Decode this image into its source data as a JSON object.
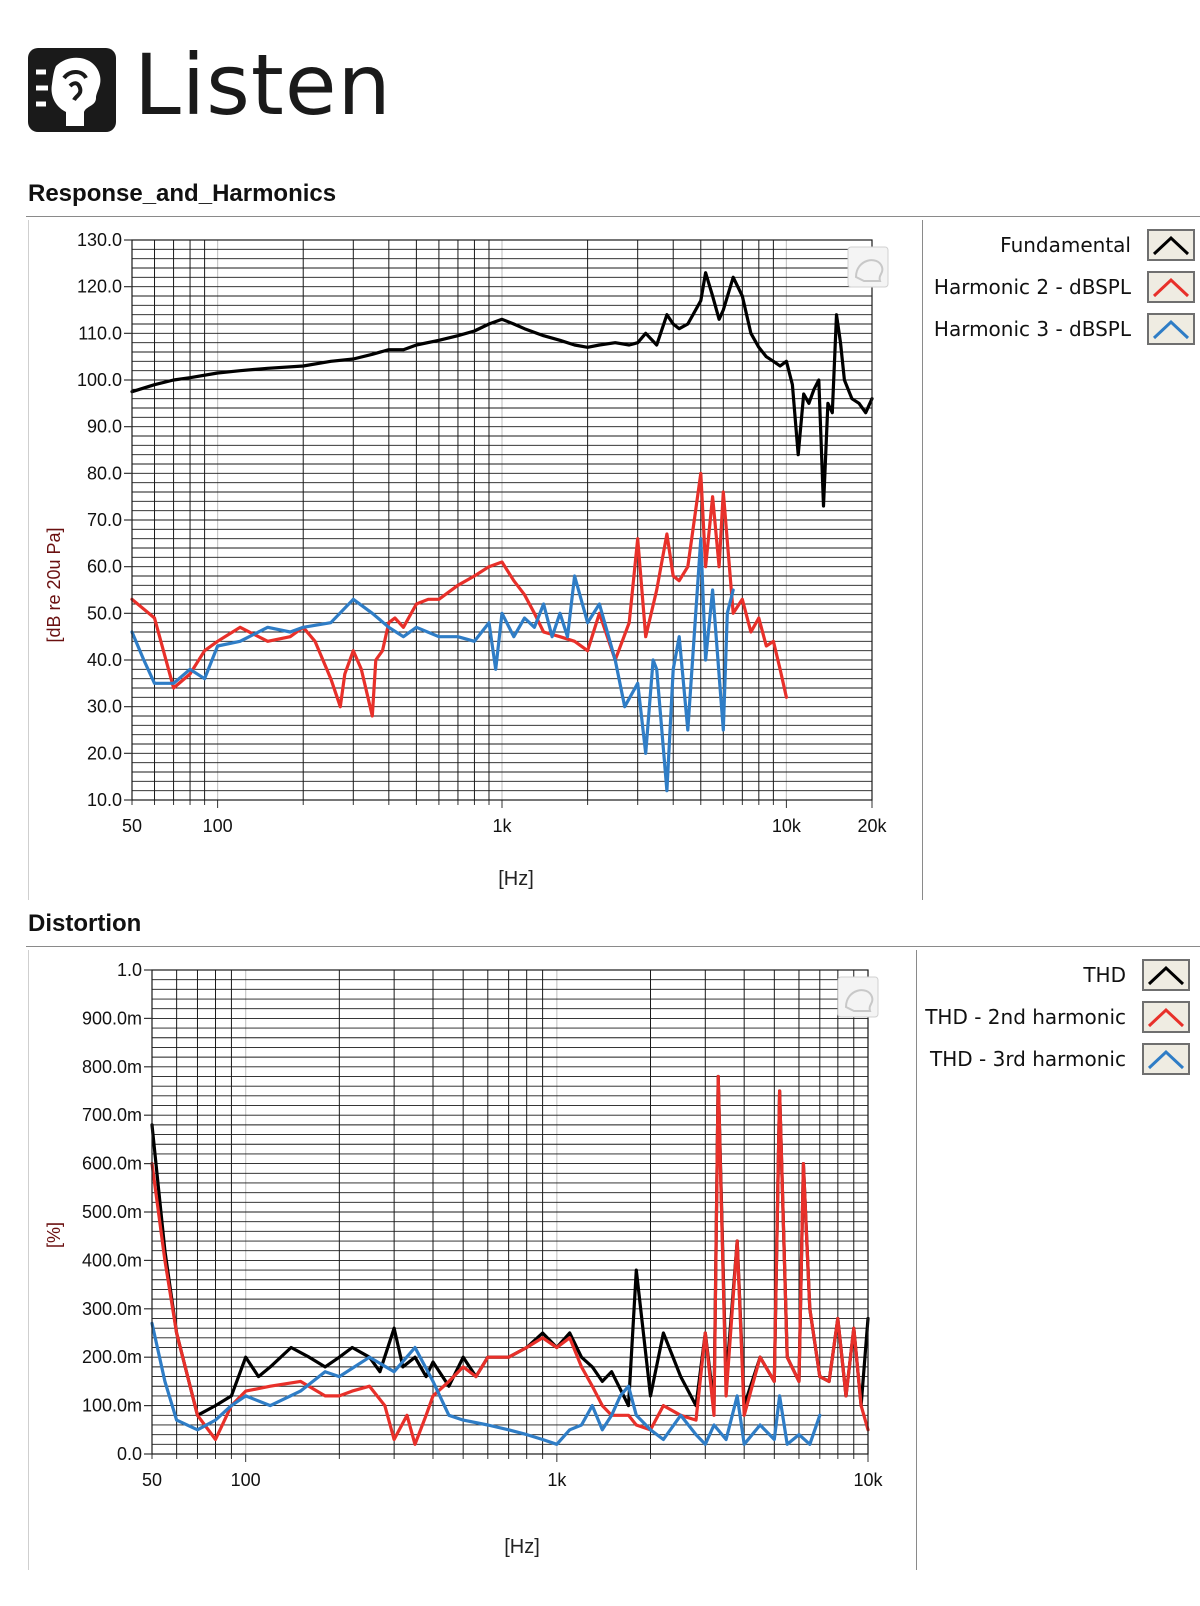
{
  "brand": {
    "name": "Listen"
  },
  "charts": {
    "response": {
      "section_title": "Response_and_Harmonics",
      "ylabel": "[dB re 20u Pa]",
      "xlabel": "[Hz]",
      "y_ticks": [
        "130.0",
        "120.0",
        "110.0",
        "100.0",
        "90.0",
        "80.0",
        "70.0",
        "60.0",
        "50.0",
        "40.0",
        "30.0",
        "20.0",
        "10.0"
      ],
      "x_ticks": [
        "50",
        "100",
        "1k",
        "10k",
        "20k"
      ],
      "legend": [
        "Fundamental",
        "Harmonic 2 - dBSPL",
        "Harmonic 3 - dBSPL"
      ]
    },
    "distortion": {
      "section_title": "Distortion",
      "ylabel": "[%]",
      "xlabel": "[Hz]",
      "y_ticks": [
        "1.0",
        "900.0m",
        "800.0m",
        "700.0m",
        "600.0m",
        "500.0m",
        "400.0m",
        "300.0m",
        "200.0m",
        "100.0m",
        "0.0"
      ],
      "x_ticks": [
        "50",
        "100",
        "1k",
        "10k"
      ],
      "legend": [
        "THD",
        "THD - 2nd harmonic",
        "THD - 3rd harmonic"
      ]
    }
  },
  "chart_data": [
    {
      "type": "line",
      "title": "Response_and_Harmonics",
      "xlabel": "[Hz]",
      "ylabel": "[dB re 20u Pa]",
      "xscale": "log",
      "xlim": [
        50,
        20000
      ],
      "ylim": [
        10,
        130
      ],
      "grid": true,
      "legend_position": "right",
      "series": [
        {
          "name": "Fundamental",
          "color": "#000000",
          "x": [
            50,
            60,
            70,
            80,
            100,
            120,
            150,
            200,
            250,
            300,
            350,
            400,
            450,
            500,
            600,
            700,
            800,
            900,
            1000,
            1100,
            1200,
            1400,
            1600,
            1800,
            2000,
            2200,
            2500,
            2800,
            3000,
            3200,
            3500,
            3800,
            4000,
            4200,
            4500,
            5000,
            5200,
            5500,
            5800,
            6000,
            6500,
            7000,
            7500,
            8000,
            8500,
            9000,
            9500,
            10000,
            10500,
            11000,
            11500,
            12000,
            12500,
            13000,
            13500,
            14000,
            14500,
            15000,
            15500,
            16000,
            17000,
            18000,
            19000,
            20000
          ],
          "y": [
            97.5,
            99,
            100,
            100.5,
            101.5,
            102,
            102.5,
            103,
            104,
            104.5,
            105.5,
            106.5,
            106.5,
            107.5,
            108.5,
            109.5,
            110.5,
            112,
            113,
            112,
            111,
            109.5,
            108.5,
            107.5,
            107,
            107.5,
            108,
            107.5,
            108,
            110,
            107.5,
            114,
            112,
            111,
            112,
            117,
            123,
            118,
            113,
            115,
            122,
            118,
            110,
            107,
            105,
            104,
            103,
            104,
            99,
            84,
            97,
            95,
            98,
            100,
            73,
            95,
            93,
            114,
            108,
            100,
            96,
            95,
            93,
            96
          ]
        },
        {
          "name": "Harmonic 2 - dBSPL",
          "color": "#e8302a",
          "x": [
            50,
            60,
            70,
            80,
            90,
            100,
            120,
            150,
            180,
            200,
            220,
            250,
            270,
            280,
            300,
            320,
            350,
            360,
            380,
            400,
            420,
            450,
            500,
            550,
            600,
            700,
            800,
            900,
            1000,
            1100,
            1200,
            1300,
            1400,
            1600,
            1800,
            2000,
            2200,
            2500,
            2800,
            3000,
            3200,
            3500,
            3800,
            4000,
            4200,
            4500,
            5000,
            5200,
            5500,
            5800,
            6000,
            6500,
            7000,
            7500,
            8000,
            8500,
            9000,
            9500,
            10000
          ],
          "y": [
            53,
            49,
            34,
            37,
            42,
            44,
            47,
            44,
            45,
            47,
            44,
            36,
            30,
            37,
            42,
            38,
            28,
            40,
            42,
            48,
            49,
            47,
            52,
            53,
            53,
            56,
            58,
            60,
            61,
            57,
            54,
            50,
            46,
            45,
            44,
            42,
            50,
            40,
            48,
            66,
            45,
            55,
            67,
            58,
            57,
            60,
            80,
            60,
            75,
            60,
            76,
            50,
            53,
            46,
            49,
            43,
            44,
            38,
            32
          ]
        },
        {
          "name": "Harmonic 3 - dBSPL",
          "color": "#2f7dc6",
          "x": [
            50,
            55,
            60,
            70,
            80,
            90,
            100,
            120,
            150,
            180,
            200,
            250,
            300,
            350,
            400,
            450,
            500,
            600,
            700,
            800,
            900,
            950,
            1000,
            1100,
            1200,
            1300,
            1400,
            1500,
            1600,
            1700,
            1800,
            2000,
            2200,
            2500,
            2700,
            3000,
            3200,
            3400,
            3500,
            3800,
            4000,
            4200,
            4500,
            5000,
            5200,
            5500,
            6000,
            6200,
            6500
          ],
          "y": [
            46,
            40,
            35,
            35,
            38,
            36,
            43,
            44,
            47,
            46,
            47,
            48,
            53,
            50,
            47,
            45,
            47,
            45,
            45,
            44,
            48,
            38,
            50,
            45,
            49,
            47,
            52,
            45,
            50,
            45,
            58,
            48,
            52,
            40,
            30,
            35,
            20,
            40,
            38,
            12,
            38,
            45,
            25,
            66,
            40,
            55,
            25,
            50,
            55
          ]
        }
      ]
    },
    {
      "type": "line",
      "title": "Distortion",
      "xlabel": "[Hz]",
      "ylabel": "[%]",
      "xscale": "log",
      "xlim": [
        50,
        10000
      ],
      "ylim": [
        0,
        1.0
      ],
      "grid": true,
      "legend_position": "right",
      "series": [
        {
          "name": "THD",
          "color": "#000000",
          "x": [
            50,
            55,
            60,
            70,
            80,
            90,
            100,
            110,
            120,
            140,
            160,
            180,
            200,
            220,
            250,
            270,
            300,
            320,
            350,
            380,
            400,
            450,
            500,
            550,
            600,
            700,
            800,
            900,
            1000,
            1100,
            1200,
            1300,
            1400,
            1500,
            1700,
            1800,
            2000,
            2200,
            2500,
            2800,
            3000,
            3200,
            3300,
            3500,
            3800,
            4000,
            4500,
            5000,
            5200,
            5500,
            6000,
            6200,
            6500,
            7000,
            7500,
            8000,
            8500,
            9000,
            9500,
            10000
          ],
          "y": [
            0.68,
            0.42,
            0.25,
            0.08,
            0.1,
            0.12,
            0.2,
            0.16,
            0.18,
            0.22,
            0.2,
            0.18,
            0.2,
            0.22,
            0.2,
            0.17,
            0.26,
            0.18,
            0.2,
            0.16,
            0.19,
            0.14,
            0.2,
            0.16,
            0.2,
            0.2,
            0.22,
            0.25,
            0.22,
            0.25,
            0.2,
            0.18,
            0.15,
            0.17,
            0.1,
            0.38,
            0.12,
            0.25,
            0.16,
            0.1,
            0.25,
            0.1,
            0.78,
            0.15,
            0.44,
            0.1,
            0.2,
            0.15,
            0.75,
            0.2,
            0.15,
            0.6,
            0.3,
            0.16,
            0.15,
            0.28,
            0.12,
            0.26,
            0.1,
            0.28
          ]
        },
        {
          "name": "THD - 2nd harmonic",
          "color": "#e8302a",
          "x": [
            50,
            55,
            60,
            70,
            80,
            90,
            100,
            120,
            150,
            180,
            200,
            220,
            250,
            280,
            300,
            330,
            350,
            380,
            400,
            450,
            500,
            550,
            600,
            700,
            800,
            900,
            1000,
            1100,
            1200,
            1300,
            1400,
            1500,
            1700,
            1800,
            2000,
            2200,
            2500,
            2800,
            3000,
            3200,
            3300,
            3500,
            3800,
            4000,
            4500,
            5000,
            5200,
            5500,
            6000,
            6200,
            6500,
            7000,
            7500,
            8000,
            8500,
            9000,
            9500,
            10000
          ],
          "y": [
            0.6,
            0.4,
            0.25,
            0.08,
            0.03,
            0.1,
            0.13,
            0.14,
            0.15,
            0.12,
            0.12,
            0.13,
            0.14,
            0.1,
            0.03,
            0.08,
            0.02,
            0.08,
            0.12,
            0.15,
            0.18,
            0.16,
            0.2,
            0.2,
            0.22,
            0.24,
            0.22,
            0.24,
            0.18,
            0.14,
            0.1,
            0.08,
            0.08,
            0.06,
            0.05,
            0.1,
            0.08,
            0.07,
            0.25,
            0.08,
            0.78,
            0.12,
            0.44,
            0.08,
            0.2,
            0.15,
            0.75,
            0.2,
            0.15,
            0.6,
            0.3,
            0.16,
            0.15,
            0.28,
            0.12,
            0.26,
            0.1,
            0.05
          ]
        },
        {
          "name": "THD - 3rd harmonic",
          "color": "#2f7dc6",
          "x": [
            50,
            55,
            60,
            70,
            80,
            90,
            100,
            120,
            150,
            180,
            200,
            250,
            300,
            350,
            400,
            450,
            500,
            600,
            700,
            800,
            900,
            1000,
            1100,
            1200,
            1300,
            1400,
            1500,
            1600,
            1700,
            1800,
            2000,
            2200,
            2500,
            2800,
            3000,
            3200,
            3500,
            3800,
            4000,
            4500,
            5000,
            5200,
            5500,
            6000,
            6500,
            7000
          ],
          "y": [
            0.27,
            0.15,
            0.07,
            0.05,
            0.07,
            0.1,
            0.12,
            0.1,
            0.13,
            0.17,
            0.16,
            0.2,
            0.17,
            0.22,
            0.15,
            0.08,
            0.07,
            0.06,
            0.05,
            0.04,
            0.03,
            0.02,
            0.05,
            0.06,
            0.1,
            0.05,
            0.08,
            0.12,
            0.14,
            0.08,
            0.05,
            0.03,
            0.08,
            0.04,
            0.02,
            0.06,
            0.03,
            0.12,
            0.02,
            0.06,
            0.03,
            0.12,
            0.02,
            0.04,
            0.02,
            0.08
          ]
        }
      ]
    }
  ]
}
